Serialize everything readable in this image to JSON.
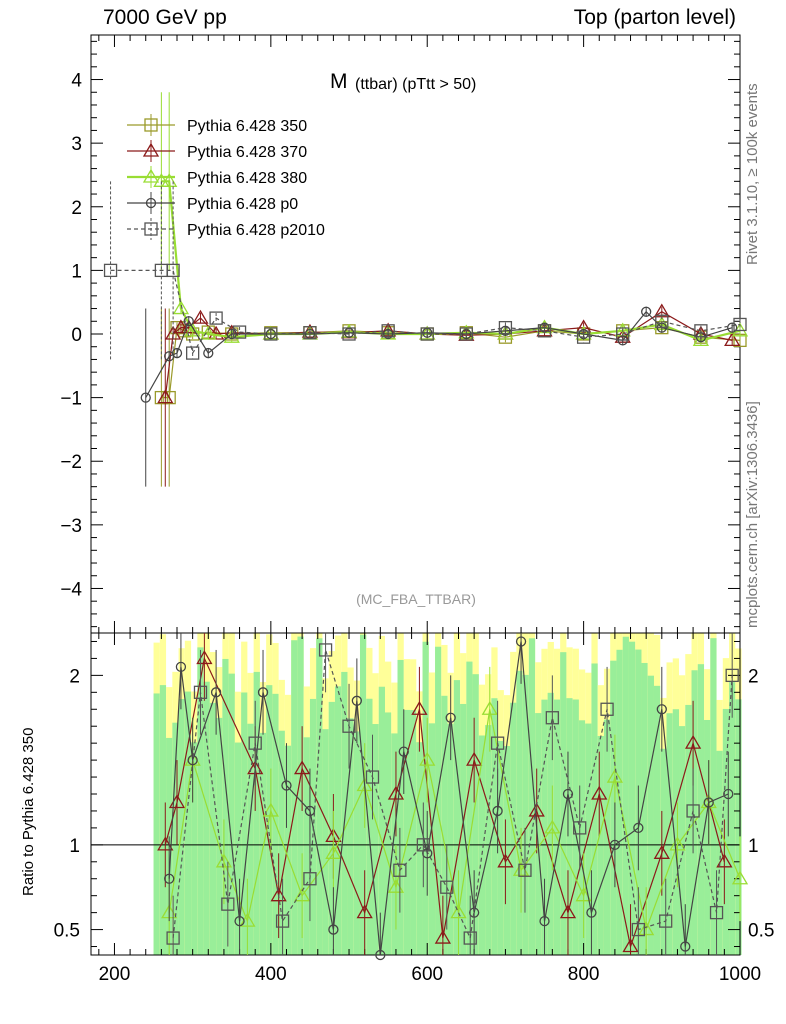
{
  "header": {
    "left": "7000 GeV pp",
    "right": "Top (parton level)"
  },
  "side": {
    "top": "Rivet 3.1.10, ≥ 100k events",
    "bottom": "mcplots.cern.ch [arXiv:1306.3436]"
  },
  "ratio_ylabel": "Ratio to Pythia 6.428 350",
  "chart_data": [
    {
      "type": "line",
      "title_main": "M",
      "title_sub": "(ttbar) (pTtt > 50)",
      "watermark": "(MC_FBA_TTBAR)",
      "xlim": [
        170,
        1000
      ],
      "ylim": [
        -4.7,
        4.7
      ],
      "x_ticks": [
        200,
        400,
        600,
        800,
        1000
      ],
      "y_ticks": [
        -4,
        -3,
        -2,
        -1,
        0,
        1,
        2,
        3,
        4
      ],
      "grid": false,
      "legend_position": "top-left",
      "series": [
        {
          "name": "Pythia 6.428 350",
          "color": "#9a9a2a",
          "marker": "square",
          "dashed": false,
          "x": [
            260,
            270,
            280,
            290,
            300,
            320,
            350,
            400,
            450,
            500,
            550,
            600,
            650,
            700,
            750,
            800,
            850,
            900,
            950,
            1000
          ],
          "y": [
            -1.0,
            -1.0,
            0.1,
            0.05,
            0.0,
            0.03,
            0.0,
            0.02,
            0.02,
            0.05,
            0.02,
            0.0,
            0.02,
            -0.05,
            0.05,
            0.0,
            0.05,
            0.1,
            -0.05,
            -0.1
          ]
        },
        {
          "name": "Pythia 6.428 370",
          "color": "#8b1a1a",
          "marker": "triangle",
          "dashed": false,
          "x": [
            265,
            275,
            285,
            295,
            310,
            330,
            350,
            400,
            450,
            500,
            550,
            600,
            650,
            700,
            750,
            800,
            850,
            900,
            950,
            990
          ],
          "y": [
            -1.0,
            0.0,
            0.1,
            0.1,
            0.25,
            0.0,
            0.02,
            0.0,
            0.03,
            0.02,
            0.05,
            0.0,
            -0.02,
            0.0,
            0.05,
            0.1,
            -0.05,
            0.35,
            0.0,
            -0.1
          ]
        },
        {
          "name": "Pythia 6.428 380",
          "color": "#99dd33",
          "marker": "triangle",
          "dashed": false,
          "x": [
            260,
            270,
            285,
            300,
            320,
            350,
            400,
            450,
            500,
            550,
            600,
            650,
            700,
            750,
            800,
            850,
            900,
            950,
            1000
          ],
          "y": [
            2.4,
            2.4,
            0.4,
            0.05,
            0.0,
            -0.05,
            0.0,
            0.0,
            0.03,
            0.0,
            0.0,
            0.02,
            0.0,
            0.1,
            0.0,
            0.05,
            0.15,
            -0.1,
            0.05
          ]
        },
        {
          "name": "Pythia 6.428 p0",
          "color": "#444444",
          "marker": "circle",
          "dashed": false,
          "x": [
            240,
            270,
            280,
            295,
            320,
            350,
            400,
            450,
            500,
            550,
            600,
            650,
            700,
            750,
            800,
            850,
            880,
            900,
            950,
            990
          ],
          "y": [
            -1.0,
            -0.35,
            -0.3,
            0.2,
            -0.3,
            0.0,
            0.0,
            0.0,
            0.02,
            0.0,
            0.02,
            0.0,
            0.05,
            0.1,
            0.0,
            -0.1,
            0.35,
            0.1,
            -0.05,
            0.1
          ]
        },
        {
          "name": "Pythia 6.428 p2010",
          "color": "#555555",
          "marker": "square",
          "dashed": true,
          "x": [
            195,
            260,
            275,
            300,
            330,
            360,
            400,
            450,
            500,
            550,
            600,
            650,
            700,
            750,
            800,
            850,
            900,
            950,
            1000
          ],
          "y": [
            1.0,
            1.0,
            1.0,
            -0.3,
            0.25,
            0.03,
            0.0,
            0.02,
            0.0,
            0.05,
            0.0,
            0.0,
            0.1,
            0.05,
            -0.05,
            0.0,
            0.2,
            0.05,
            0.15
          ]
        }
      ]
    },
    {
      "type": "line",
      "ylabel": "Ratio to Pythia 6.428 350",
      "xlim": [
        170,
        1000
      ],
      "ylim": [
        0.35,
        2.25
      ],
      "x_ticks": [
        200,
        400,
        600,
        800,
        1000
      ],
      "y_ticks": [
        0.5,
        1,
        2
      ],
      "grid": false,
      "reference_line": 1,
      "series": [
        {
          "name": "Pythia 6.428 370",
          "color": "#8b1a1a",
          "x": [
            265,
            280,
            315,
            380,
            410,
            440,
            480,
            520,
            560,
            590,
            620,
            660,
            700,
            740,
            780,
            820,
            860,
            900,
            940,
            980
          ],
          "y": [
            1.0,
            1.25,
            2.1,
            1.45,
            0.7,
            1.45,
            1.05,
            0.6,
            1.3,
            1.8,
            0.45,
            1.5,
            0.9,
            1.2,
            0.6,
            1.3,
            0.4,
            0.95,
            1.6,
            0.9
          ]
        },
        {
          "name": "Pythia 6.428 380",
          "color": "#99dd33",
          "x": [
            270,
            300,
            340,
            370,
            400,
            440,
            480,
            520,
            560,
            600,
            640,
            680,
            720,
            760,
            800,
            840,
            880,
            920,
            960,
            1000
          ],
          "y": [
            0.6,
            1.5,
            0.9,
            0.55,
            1.2,
            0.7,
            0.95,
            1.35,
            0.75,
            1.5,
            0.6,
            1.8,
            0.85,
            1.1,
            0.7,
            1.4,
            0.5,
            1.0,
            1.25,
            0.8
          ]
        },
        {
          "name": "Pythia 6.428 p0",
          "color": "#444444",
          "x": [
            270,
            285,
            300,
            330,
            360,
            390,
            420,
            450,
            480,
            510,
            540,
            570,
            600,
            630,
            660,
            690,
            720,
            750,
            780,
            810,
            840,
            870,
            900,
            930,
            960,
            985
          ],
          "y": [
            0.8,
            2.05,
            1.5,
            1.9,
            0.55,
            1.9,
            1.35,
            1.2,
            0.5,
            1.85,
            0.35,
            1.55,
            0.95,
            1.75,
            0.6,
            1.2,
            2.2,
            0.55,
            1.3,
            0.6,
            1.0,
            1.1,
            1.8,
            0.4,
            1.25,
            1.3
          ]
        },
        {
          "name": "Pythia 6.428 p2010",
          "color": "#555555",
          "x": [
            275,
            310,
            345,
            380,
            415,
            450,
            470,
            500,
            530,
            565,
            595,
            625,
            655,
            690,
            725,
            760,
            795,
            830,
            870,
            905,
            940,
            970,
            990
          ],
          "y": [
            0.45,
            1.9,
            0.65,
            1.6,
            0.55,
            0.8,
            2.15,
            1.7,
            1.4,
            0.85,
            1.0,
            0.75,
            0.45,
            1.6,
            0.85,
            1.75,
            1.1,
            1.8,
            0.5,
            0.55,
            1.2,
            0.6,
            2.0
          ]
        }
      ]
    }
  ]
}
